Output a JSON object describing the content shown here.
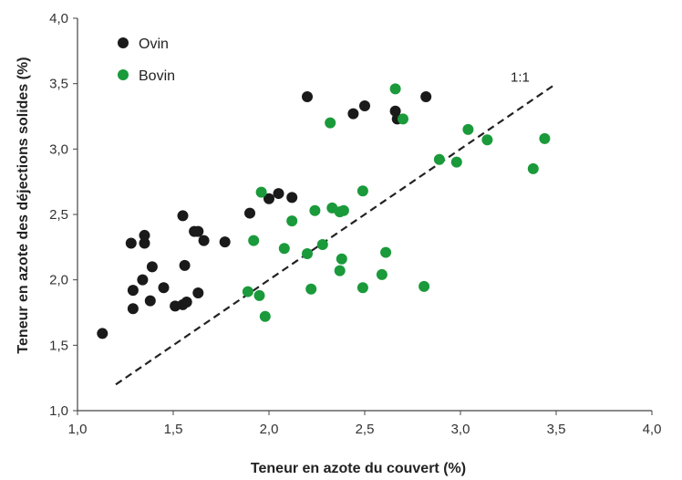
{
  "chart_data": {
    "type": "scatter",
    "xlabel": "Teneur en azote du couvert (%)",
    "ylabel": "Teneur en azote des déjections solides (%)",
    "xlim": [
      1.0,
      4.0
    ],
    "ylim": [
      1.0,
      4.0
    ],
    "xticks": [
      "1,0",
      "1,5",
      "2,0",
      "2,5",
      "3,0",
      "3,5",
      "4,0"
    ],
    "yticks": [
      "1,0",
      "1,5",
      "2,0",
      "2,5",
      "3,0",
      "3,5",
      "4,0"
    ],
    "grid": false,
    "legend_position": "top-left",
    "reference_line": {
      "label": "1:1",
      "x": [
        1.2,
        3.5
      ],
      "y": [
        1.2,
        3.5
      ],
      "style": "dashed"
    },
    "series": [
      {
        "name": "Ovin",
        "color": "#1a1a1a",
        "points": [
          [
            1.13,
            1.59
          ],
          [
            1.28,
            2.28
          ],
          [
            1.29,
            1.92
          ],
          [
            1.29,
            1.78
          ],
          [
            1.35,
            2.34
          ],
          [
            1.35,
            2.28
          ],
          [
            1.34,
            2.0
          ],
          [
            1.39,
            2.1
          ],
          [
            1.38,
            1.84
          ],
          [
            1.45,
            1.94
          ],
          [
            1.51,
            1.8
          ],
          [
            1.55,
            2.49
          ],
          [
            1.56,
            2.11
          ],
          [
            1.55,
            1.81
          ],
          [
            1.57,
            1.83
          ],
          [
            1.61,
            2.37
          ],
          [
            1.63,
            2.37
          ],
          [
            1.63,
            1.9
          ],
          [
            1.66,
            2.3
          ],
          [
            1.77,
            2.29
          ],
          [
            1.9,
            2.51
          ],
          [
            2.0,
            2.62
          ],
          [
            2.05,
            2.66
          ],
          [
            2.12,
            2.63
          ],
          [
            2.2,
            3.4
          ],
          [
            2.44,
            3.27
          ],
          [
            2.5,
            3.33
          ],
          [
            2.66,
            3.29
          ],
          [
            2.67,
            3.23
          ],
          [
            2.82,
            3.4
          ]
        ]
      },
      {
        "name": "Bovin",
        "color": "#1a9a3a",
        "points": [
          [
            1.89,
            1.91
          ],
          [
            1.92,
            2.3
          ],
          [
            1.95,
            1.88
          ],
          [
            1.96,
            2.67
          ],
          [
            1.98,
            1.72
          ],
          [
            2.08,
            2.24
          ],
          [
            2.12,
            2.45
          ],
          [
            2.2,
            2.2
          ],
          [
            2.22,
            1.93
          ],
          [
            2.24,
            2.53
          ],
          [
            2.28,
            2.27
          ],
          [
            2.32,
            3.2
          ],
          [
            2.33,
            2.55
          ],
          [
            2.37,
            2.52
          ],
          [
            2.39,
            2.53
          ],
          [
            2.37,
            2.07
          ],
          [
            2.38,
            2.16
          ],
          [
            2.49,
            2.68
          ],
          [
            2.49,
            1.94
          ],
          [
            2.59,
            2.04
          ],
          [
            2.61,
            2.21
          ],
          [
            2.66,
            3.46
          ],
          [
            2.7,
            3.23
          ],
          [
            2.81,
            1.95
          ],
          [
            2.89,
            2.92
          ],
          [
            2.98,
            2.9
          ],
          [
            3.04,
            3.15
          ],
          [
            3.14,
            3.07
          ],
          [
            3.38,
            2.85
          ],
          [
            3.44,
            3.08
          ]
        ]
      }
    ]
  }
}
